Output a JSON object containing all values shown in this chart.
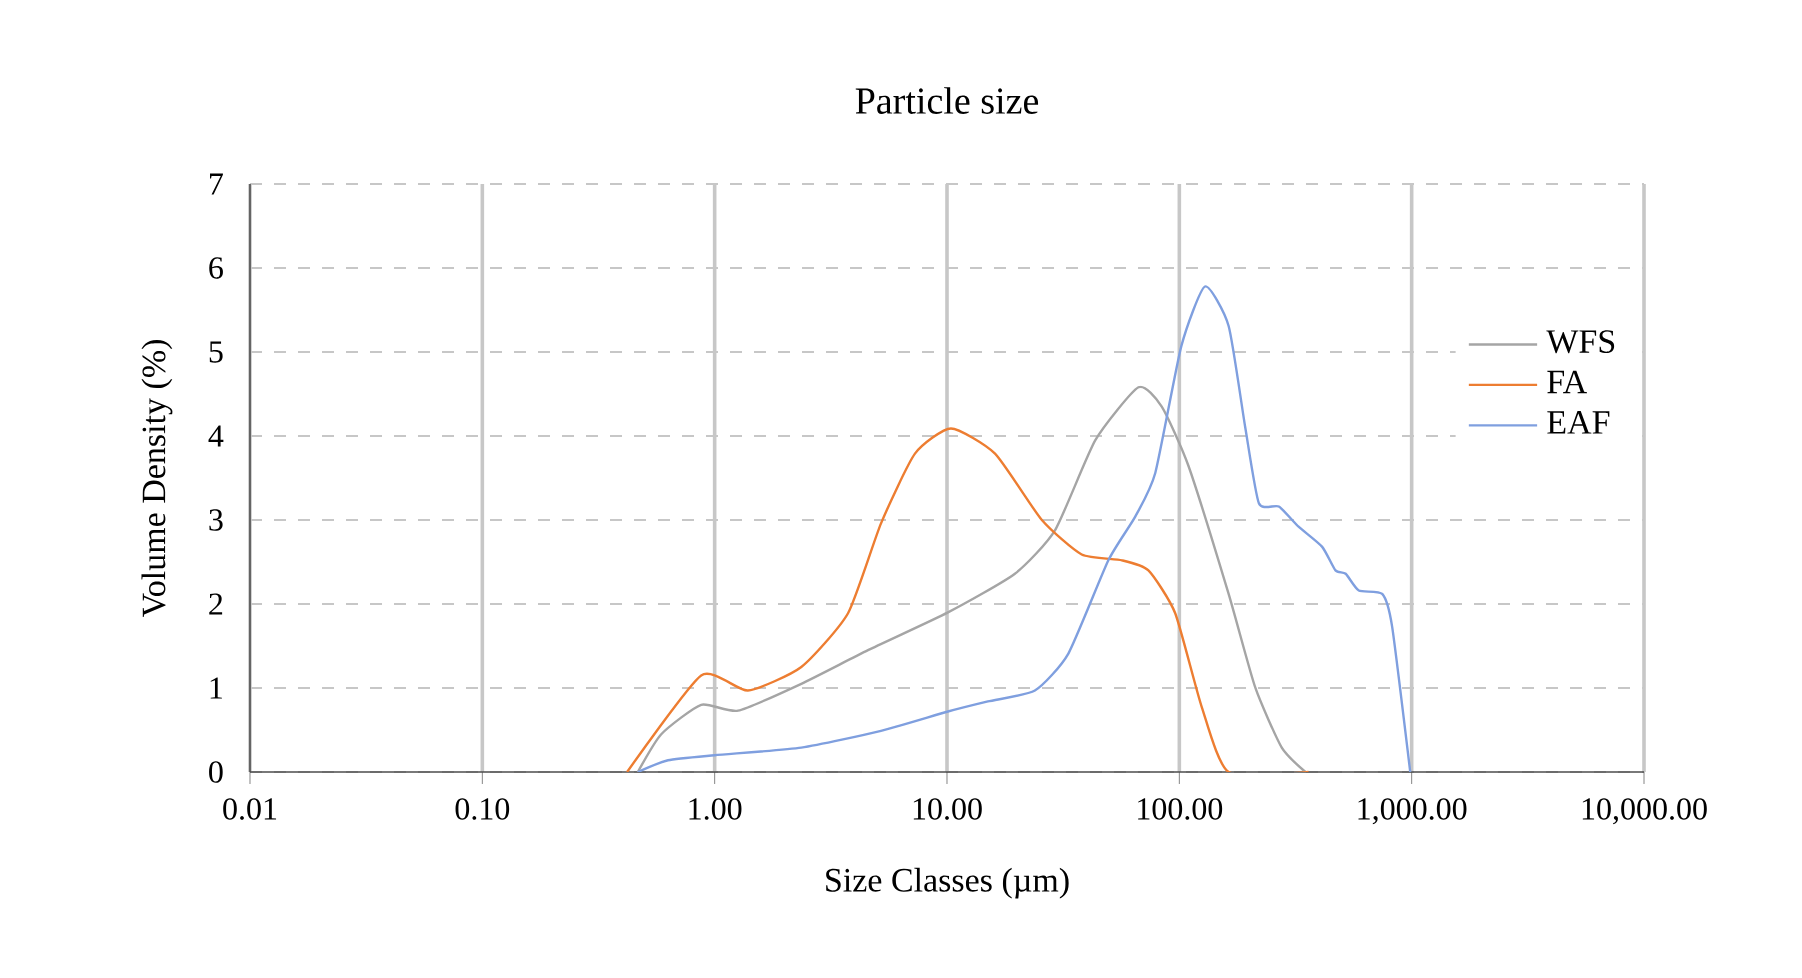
{
  "chart_data": {
    "type": "line",
    "title": "Particle size",
    "xlabel": "Size Classes (µm)",
    "ylabel": "Volume Density (%)",
    "log": "x",
    "grid": true,
    "legend": "right",
    "marker": "none",
    "line_style": "solid",
    "xlim": [
      0.01,
      10000
    ],
    "ylim": [
      0,
      7
    ],
    "xticks": [
      0.01,
      {
        "value": 0.1,
        "label": "0.10"
      },
      {
        "value": 1,
        "label": "1.00"
      },
      {
        "value": 10,
        "label": "10.00"
      },
      {
        "value": 100,
        "label": "100.00"
      },
      {
        "value": 1000,
        "label": "1,000.00"
      },
      {
        "value": 10000,
        "label": "10,000.00"
      }
    ],
    "yticks": [
      0,
      1,
      2,
      3,
      4,
      5,
      6,
      7
    ],
    "series": [
      {
        "name": "WFS",
        "color": "#a5a5a5",
        "x": [
          0.467,
          0.589,
          0.875,
          1.26,
          2.36,
          4.57,
          10.1,
          19.6,
          29.2,
          43.5,
          66.7,
          84,
          109.6,
          163,
          212,
          276,
          349
        ],
        "values": [
          0,
          0.45,
          0.8,
          0.73,
          1.05,
          1.45,
          1.9,
          2.36,
          2.88,
          3.95,
          4.58,
          4.35,
          3.64,
          2.12,
          1.01,
          0.29,
          0
        ]
      },
      {
        "name": "FA",
        "color": "#ed7d31",
        "x": [
          0.42,
          0.875,
          1.39,
          2.36,
          3.75,
          5.2,
          7.28,
          10.4,
          16.1,
          25.6,
          38,
          56.6,
          73.6,
          96,
          125,
          163,
          360
        ],
        "values": [
          0,
          1.15,
          0.97,
          1.25,
          1.89,
          2.96,
          3.79,
          4.09,
          3.79,
          3.0,
          2.59,
          2.52,
          2.4,
          1.89,
          0.77,
          0,
          0
        ]
      },
      {
        "name": "EAF",
        "color": "#7f9fdf",
        "x": [
          0.467,
          0.63,
          1.0,
          2.36,
          5.2,
          10.1,
          15,
          23.9,
          33.3,
          49.5,
          64.6,
          78.8,
          102,
          129,
          163,
          192,
          220,
          268,
          326,
          412,
          470,
          520,
          592,
          747,
          824,
          986
        ],
        "values": [
          0,
          0.14,
          0.2,
          0.29,
          0.49,
          0.72,
          0.84,
          0.97,
          1.41,
          2.52,
          3.04,
          3.56,
          5.07,
          5.78,
          5.31,
          4.11,
          3.2,
          3.16,
          2.92,
          2.68,
          2.4,
          2.36,
          2.16,
          2.12,
          1.73,
          0
        ]
      }
    ]
  }
}
